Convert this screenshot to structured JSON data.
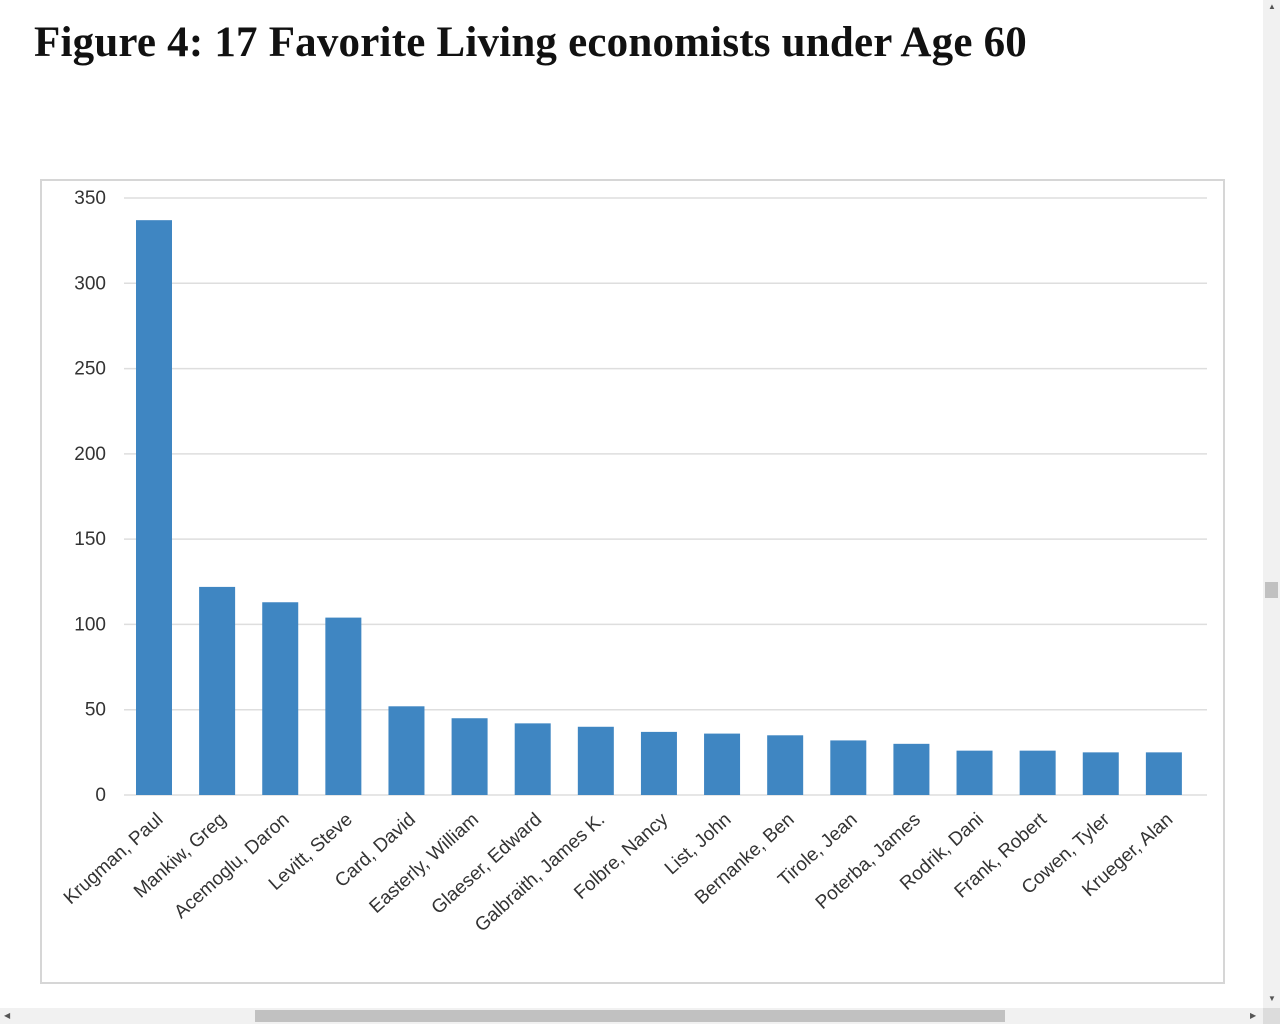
{
  "page": {
    "title": "Figure 4: 17 Favorite Living economists under Age 60"
  },
  "chart_data": {
    "type": "bar",
    "title": "Figure 4: 17 Favorite Living economists under Age 60",
    "xlabel": "",
    "ylabel": "",
    "ylim": [
      0,
      350
    ],
    "yticks": [
      0,
      50,
      100,
      150,
      200,
      250,
      300,
      350
    ],
    "grid": true,
    "legend": "none",
    "bar_color": "#3f86c2",
    "categories": [
      "Krugman, Paul",
      "Mankiw, Greg",
      "Acemoglu, Daron",
      "Levitt, Steve",
      "Card, David",
      "Easterly, William",
      "Glaeser, Edward",
      "Galbraith, James K.",
      "Folbre, Nancy",
      "List, John",
      "Bernanke, Ben",
      "Tirole, Jean",
      "Poterba, James",
      "Rodrik, Dani",
      "Frank, Robert",
      "Cowen, Tyler",
      "Krueger, Alan"
    ],
    "values": [
      337,
      122,
      113,
      104,
      52,
      45,
      42,
      40,
      37,
      36,
      35,
      32,
      30,
      26,
      26,
      25,
      25
    ]
  }
}
